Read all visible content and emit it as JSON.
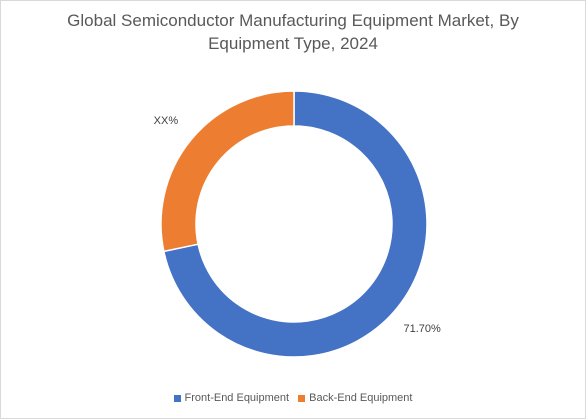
{
  "chart_data": {
    "type": "pie",
    "title_line1": "Global Semiconductor Manufacturing Equipment Market, By",
    "title_line2": "Equipment Type, 2024",
    "categories": [
      "Front-End Equipment",
      "Back-End Equipment"
    ],
    "values": [
      71.7,
      28.3
    ],
    "data_labels": [
      "71.70%",
      "XX%"
    ],
    "colors": [
      "#4472C4",
      "#ED7D31"
    ],
    "donut": true,
    "legend_position": "bottom"
  }
}
